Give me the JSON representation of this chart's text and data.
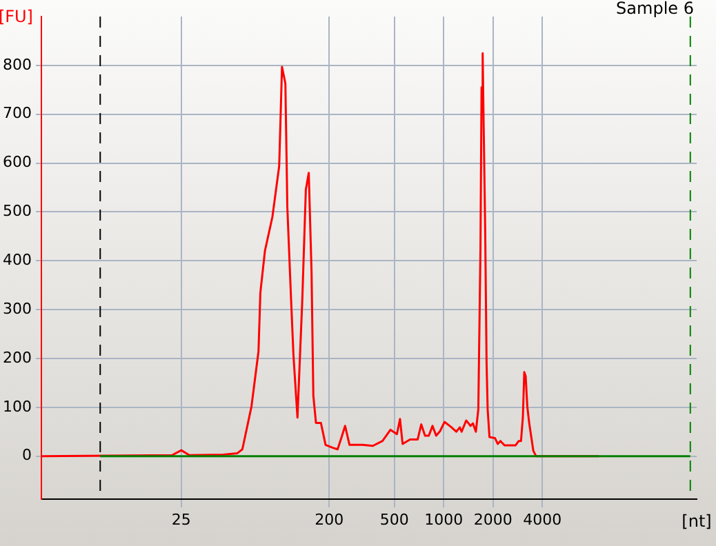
{
  "chart_data": {
    "type": "line",
    "title": "Sample 6",
    "xlabel": "[nt]",
    "ylabel": "[FU]",
    "xlim": [
      3.5,
      35000
    ],
    "xticks": [
      25,
      200,
      500,
      1000,
      2000,
      4000
    ],
    "ylim": [
      -88,
      900
    ],
    "yticks": [
      0,
      100,
      200,
      300,
      400,
      500,
      600,
      700,
      800
    ],
    "log": "x",
    "grid": true,
    "legend": false,
    "marker": "none",
    "line_style": "solid",
    "ref_lines": [
      {
        "axis": "x",
        "value": 8,
        "color": "#000000",
        "line_style": "dashed"
      },
      {
        "axis": "x",
        "value": 32000,
        "color": "#008000",
        "line_style": "dashed"
      }
    ],
    "series": [
      {
        "color": "#008000",
        "x": [
          8,
          32000
        ],
        "values": [
          0,
          0
        ]
      },
      {
        "color": "#ff0000",
        "x": [
          3.5,
          22,
          25,
          28,
          45,
          55,
          59,
          67,
          74,
          76,
          81,
          90,
          99,
          103,
          108,
          111,
          117,
          121,
          128,
          137,
          144,
          150,
          156,
          160,
          166,
          178,
          190,
          211,
          225,
          238,
          250,
          266,
          320,
          369,
          423,
          473,
          518,
          541,
          561,
          623,
          693,
          729,
          769,
          811,
          854,
          899,
          949,
          1011,
          1106,
          1193,
          1253,
          1286,
          1372,
          1457,
          1508,
          1571,
          1626,
          1676,
          1702,
          1728,
          1754,
          1791,
          1826,
          1854,
          1902,
          2054,
          2136,
          2219,
          2351,
          2741,
          2870,
          2963,
          3041,
          3102,
          3162,
          3238,
          3324,
          3431,
          3522,
          3660,
          4595,
          8870
        ],
        "values": [
          0,
          2,
          12,
          2,
          3,
          6,
          14,
          101,
          214,
          335,
          420,
          490,
          594,
          797,
          763,
          510,
          321,
          206,
          79,
          321,
          546,
          580,
          377,
          124,
          68,
          68,
          23,
          17,
          14,
          39,
          62,
          23,
          23,
          21,
          31,
          54,
          45,
          76,
          25,
          34,
          34,
          65,
          42,
          42,
          62,
          42,
          51,
          70,
          60,
          50,
          59,
          50,
          73,
          62,
          67,
          50,
          96,
          425,
          755,
          825,
          670,
          462,
          191,
          96,
          39,
          37,
          25,
          31,
          22,
          22,
          31,
          31,
          79,
          172,
          164,
          101,
          68,
          37,
          11,
          0,
          0,
          0
        ]
      }
    ]
  }
}
